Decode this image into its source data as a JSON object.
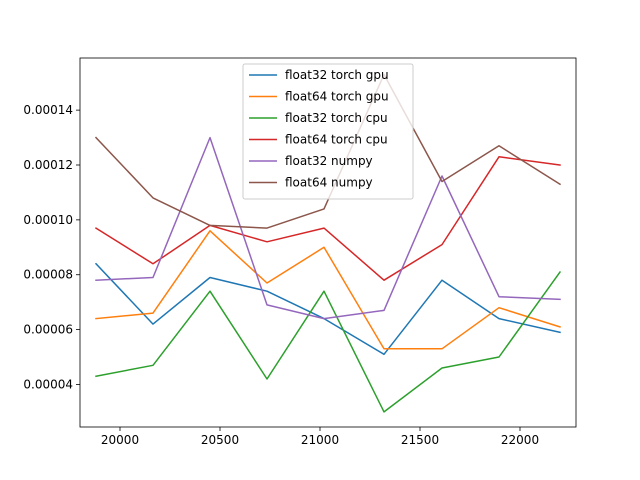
{
  "chart_data": {
    "type": "line",
    "title": "",
    "xlabel": "",
    "ylabel": "",
    "xlim": [
      19800,
      22280
    ],
    "ylim": [
      2.45e-05,
      0.000159
    ],
    "x": [
      19880,
      20165,
      20450,
      20735,
      21020,
      21320,
      21610,
      21895,
      22200
    ],
    "xticks": [
      20000,
      20500,
      21000,
      21500,
      22000
    ],
    "xtick_labels": [
      "20000",
      "20500",
      "21000",
      "21500",
      "22000"
    ],
    "yticks": [
      4e-05,
      6e-05,
      8e-05,
      0.0001,
      0.00012,
      0.00014
    ],
    "ytick_labels": [
      "0.00004",
      "0.00006",
      "0.00008",
      "0.00010",
      "0.00012",
      "0.00014"
    ],
    "grid": false,
    "legend_position": "upper-center",
    "series": [
      {
        "name": "float32 torch gpu",
        "color": "#1f77b4",
        "values": [
          8.4e-05,
          6.2e-05,
          7.9e-05,
          7.4e-05,
          6.4e-05,
          5.1e-05,
          7.8e-05,
          6.4e-05,
          5.9e-05
        ]
      },
      {
        "name": "float64 torch gpu",
        "color": "#ff7f0e",
        "values": [
          6.4e-05,
          6.6e-05,
          9.6e-05,
          7.7e-05,
          9e-05,
          5.3e-05,
          5.3e-05,
          6.8e-05,
          6.1e-05
        ]
      },
      {
        "name": "float32 torch cpu",
        "color": "#2ca02c",
        "values": [
          4.3e-05,
          4.7e-05,
          7.4e-05,
          4.2e-05,
          7.4e-05,
          3e-05,
          4.6e-05,
          5e-05,
          8.1e-05
        ]
      },
      {
        "name": "float64 torch cpu",
        "color": "#d62728",
        "values": [
          9.7e-05,
          8.4e-05,
          9.8e-05,
          9.2e-05,
          9.7e-05,
          7.8e-05,
          9.1e-05,
          0.000123,
          0.00012
        ]
      },
      {
        "name": "float32 numpy",
        "color": "#9467bd",
        "values": [
          7.8e-05,
          7.9e-05,
          0.00013,
          6.9e-05,
          6.4e-05,
          6.7e-05,
          0.000116,
          7.2e-05,
          7.1e-05
        ]
      },
      {
        "name": "float64 numpy",
        "color": "#8c564b",
        "values": [
          0.00013,
          0.000108,
          9.8e-05,
          9.7e-05,
          0.000104,
          0.000153,
          0.000114,
          0.000127,
          0.000113
        ]
      }
    ]
  }
}
